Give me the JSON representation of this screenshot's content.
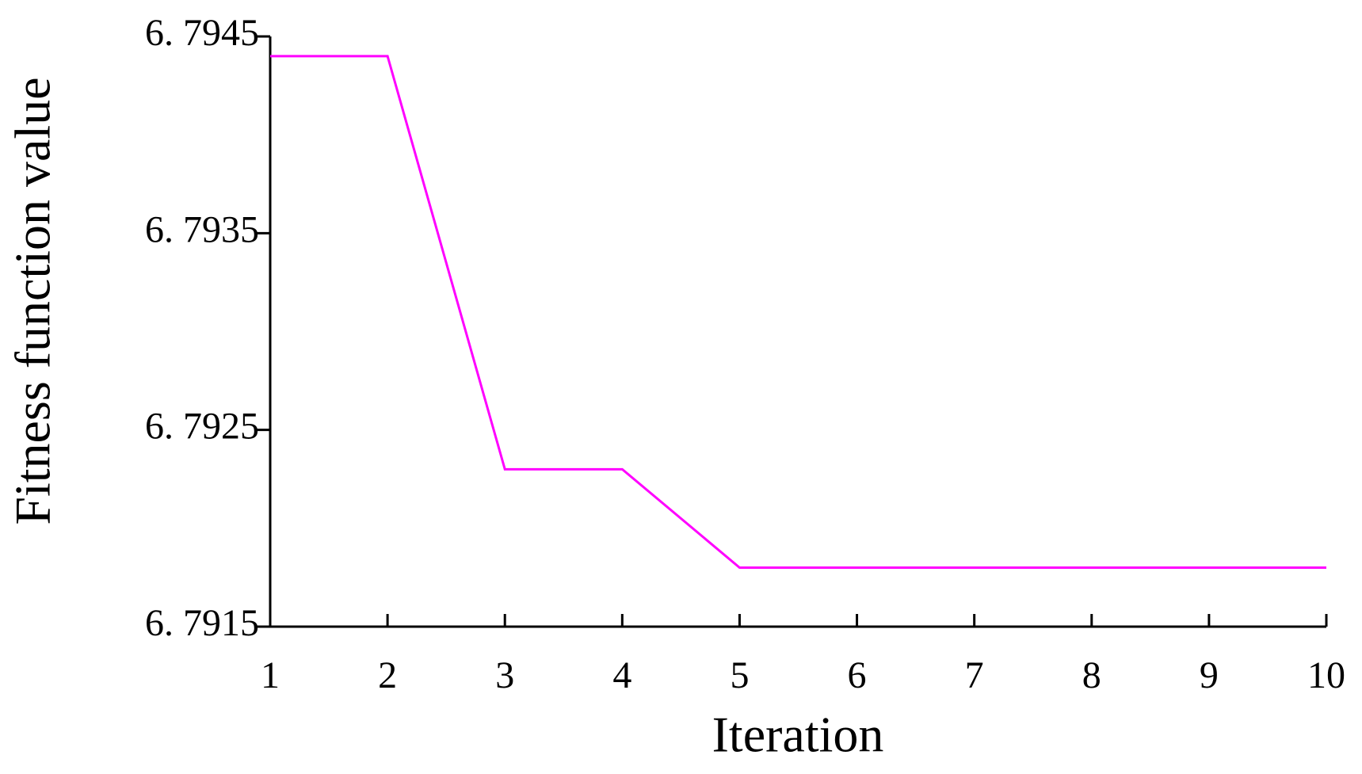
{
  "chart_data": {
    "type": "line",
    "xlabel": "Iteration",
    "ylabel": "Fitness function value",
    "x": [
      1,
      2,
      3,
      4,
      5,
      6,
      7,
      8,
      9,
      10
    ],
    "series": [
      {
        "color": "#ff00ff",
        "values": [
          6.7944,
          6.7944,
          6.7923,
          6.7923,
          6.7918,
          6.7918,
          6.7918,
          6.7918,
          6.7918,
          6.7918
        ]
      }
    ],
    "xlim": [
      1,
      10
    ],
    "xticks": [
      1,
      2,
      3,
      4,
      5,
      6,
      7,
      8,
      9,
      10
    ],
    "ylim": [
      6.7915,
      6.7945
    ],
    "yticks": [
      {
        "value": 6.7915,
        "label": "6. 7915"
      },
      {
        "value": 6.7925,
        "label": "6. 7925"
      },
      {
        "value": 6.7935,
        "label": "6. 7935"
      },
      {
        "value": 6.7945,
        "label": "6. 7945"
      }
    ],
    "grid": false
  }
}
